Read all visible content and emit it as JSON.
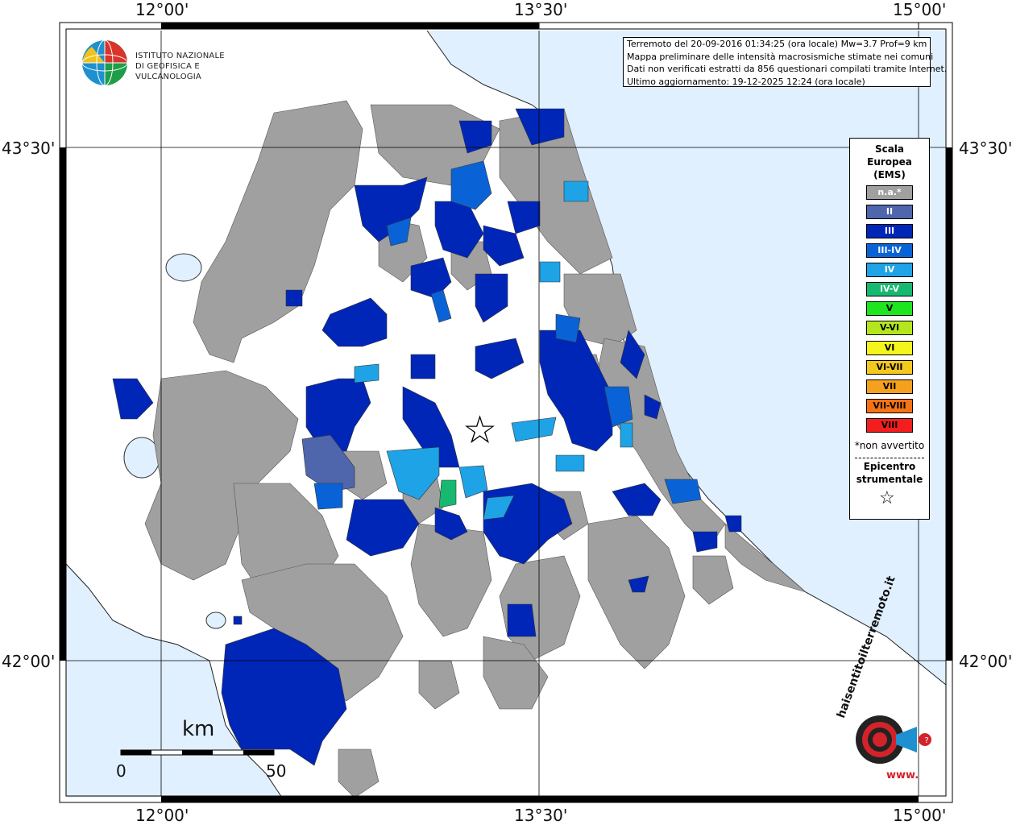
{
  "ticks": {
    "lon_top": [
      "12°00'",
      "13°30'",
      "15°00'"
    ],
    "lon_bottom": [
      "12°00'",
      "13°30'",
      "15°00'"
    ],
    "lat_left": [
      "43°30'",
      "42°00'"
    ],
    "lat_right": [
      "43°30'",
      "42°00'"
    ]
  },
  "info": {
    "line1": "Terremoto del 20-09-2016 01:34:25 (ora locale) Mw=3.7 Prof=9 km",
    "line2": "Mappa preliminare delle intensità macrosismiche stimate nei comuni",
    "line3": "Dati non verificati estratti da 856 questionari compilati tramite Internet.",
    "line4": "Ultimo aggiornamento: 19-12-2025 12:24 (ora locale)"
  },
  "ingv": {
    "line1": "ISTITUTO NAZIONALE",
    "line2": "DI GEOFISICA E VULCANOLOGIA"
  },
  "legend": {
    "title1": "Scala",
    "title2": "Europea",
    "title3": "(EMS)",
    "items": [
      {
        "label": "n.a.*",
        "color": "#a0a0a0"
      },
      {
        "label": "II",
        "color": "#4f66ad"
      },
      {
        "label": "III",
        "color": "#0026b8"
      },
      {
        "label": "III-IV",
        "color": "#0a63d6"
      },
      {
        "label": "IV",
        "color": "#1ea3e6"
      },
      {
        "label": "IV-V",
        "color": "#17b870"
      },
      {
        "label": "V",
        "color": "#1ee61e"
      },
      {
        "label": "V-VI",
        "color": "#b4e61e"
      },
      {
        "label": "VI",
        "color": "#f5f51e"
      },
      {
        "label": "VI-VII",
        "color": "#f5c81e"
      },
      {
        "label": "VII",
        "color": "#f5a01e"
      },
      {
        "label": "VII-VIII",
        "color": "#f57314"
      },
      {
        "label": "VIII",
        "color": "#f51e1e"
      }
    ],
    "note": "*non avvertito",
    "epicenter1": "Epicentro",
    "epicenter2": "strumentale"
  },
  "scale": {
    "unit": "km",
    "min": "0",
    "max": "50"
  },
  "hst": {
    "text": "haisentitoilterremoto.it",
    "www": "www."
  },
  "colors": {
    "sea": "#e0f0ff",
    "na": "#a0a0a0",
    "iii": "#0026b8",
    "iv": "#1ea3e6",
    "ii": "#4f66ad"
  }
}
